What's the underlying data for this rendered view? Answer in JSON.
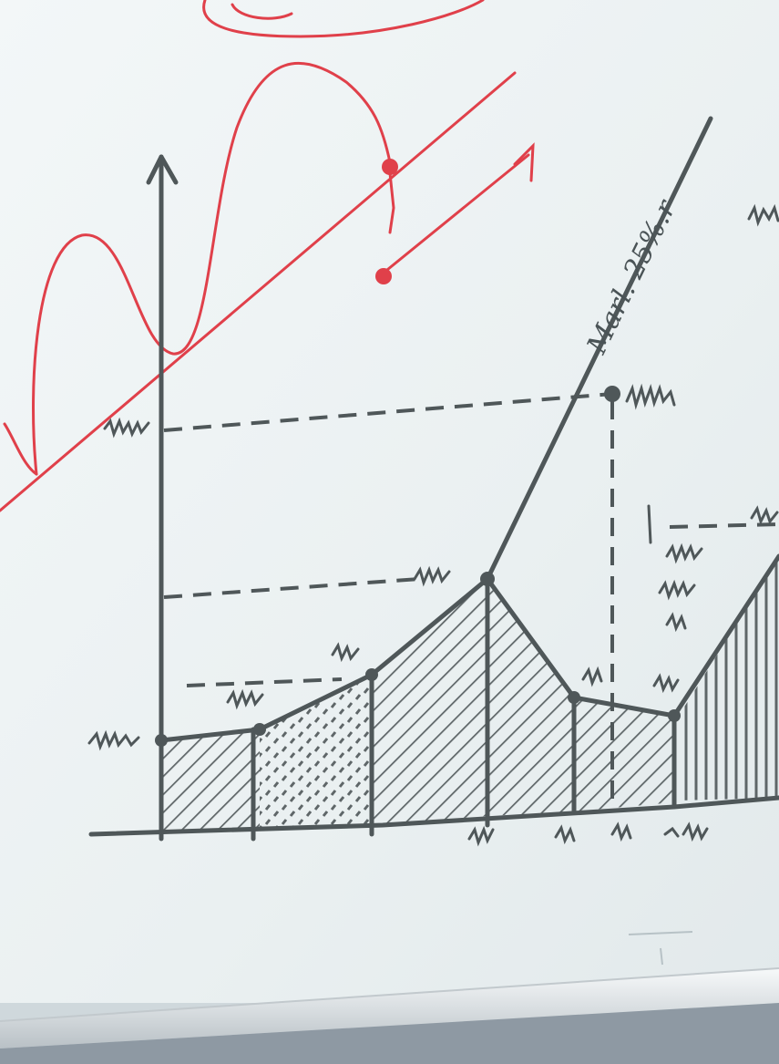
{
  "scene": {
    "subject": "whiteboard",
    "marker_colors": {
      "ink": "#4f5759",
      "red": "#e0404a"
    },
    "surface_color": "#eef3f4",
    "tray_color": "#dfe3e5",
    "wall_color": "#8a96a0"
  },
  "drawing": {
    "slope_label": "Marl. 25%.r"
  }
}
